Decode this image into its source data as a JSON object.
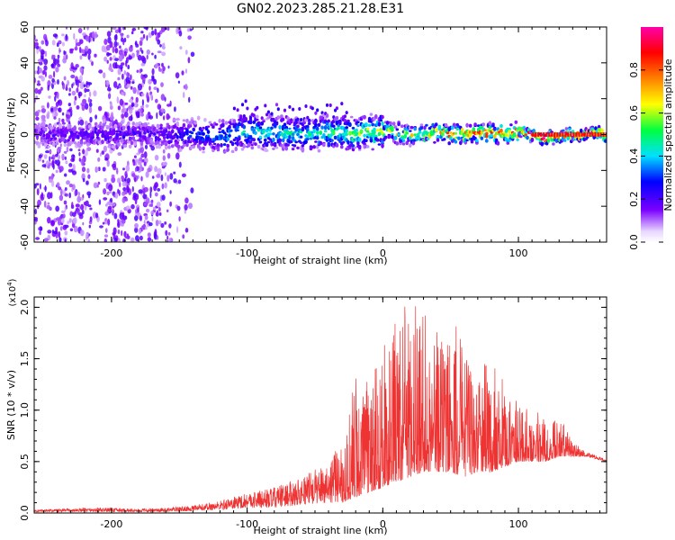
{
  "title": "GN02.2023.285.21.28.E31",
  "chart_data": [
    {
      "type": "heatmap",
      "xlabel": "Height of straight line (km)",
      "ylabel": "Frequency (Hz)",
      "xlim": [
        -257,
        165
      ],
      "ylim": [
        -60,
        60
      ],
      "xticks": [
        -200,
        -100,
        0,
        100
      ],
      "xtick_labels": [
        "-200",
        "-100",
        "0",
        "100"
      ],
      "yticks": [
        -60,
        -40,
        -20,
        0,
        20,
        40,
        60
      ],
      "ytick_labels": [
        "-60",
        "-40",
        "-20",
        "0",
        "20",
        "40",
        "60"
      ],
      "colorbar": {
        "label": "Normalized spectral amplitude",
        "range": [
          0,
          1
        ],
        "ticks": [
          0.0,
          0.2,
          0.4,
          0.6,
          0.8
        ],
        "tick_labels": [
          "0.0",
          "0.2",
          "0.4",
          "0.6",
          "0.8"
        ],
        "colormap": [
          "#ffffff",
          "#7a00ff",
          "#0000ff",
          "#00e0ff",
          "#00ff40",
          "#ffff00",
          "#ff8000",
          "#ff0000",
          "#ff00aa"
        ]
      },
      "ridge": {
        "x": [
          -257,
          -200,
          -160,
          -120,
          -100,
          -80,
          -60,
          -40,
          -20,
          0,
          20,
          40,
          60,
          80,
          100,
          120,
          140,
          165
        ],
        "frequency": [
          0,
          0,
          0,
          -1,
          2,
          1,
          0,
          1,
          0,
          2,
          0,
          1,
          0,
          1,
          1,
          -2,
          0,
          0
        ],
        "peak_amplitude": [
          0.15,
          0.2,
          0.2,
          0.35,
          0.45,
          0.45,
          0.45,
          0.5,
          0.55,
          0.65,
          0.65,
          0.75,
          0.8,
          0.85,
          0.9,
          0.9,
          0.95,
          0.95
        ]
      }
    },
    {
      "type": "line",
      "xlabel": "Height of straight line (km)",
      "ylabel": "SNR (10 * v/v)",
      "y_multiplier": "(x10",
      "y_multiplier_exp": "4",
      "y_multiplier_close": ")",
      "xlim": [
        -257,
        165
      ],
      "ylim": [
        0,
        2.1
      ],
      "xticks": [
        -200,
        -100,
        0,
        100
      ],
      "xtick_labels": [
        "-200",
        "-100",
        "0",
        "100"
      ],
      "yticks": [
        0.0,
        0.5,
        1.0,
        1.5,
        2.0
      ],
      "ytick_labels": [
        "0.0",
        "0.5",
        "1.0",
        "1.5",
        "2.0"
      ],
      "color": "#ee3333",
      "series": [
        {
          "x": [
            -257,
            -240,
            -220,
            -200,
            -180,
            -160,
            -140,
            -120,
            -100,
            -80,
            -60,
            -40,
            -30,
            -20,
            -10,
            0,
            10,
            20,
            30,
            40,
            50,
            60,
            70,
            80,
            90,
            100,
            110,
            120,
            130,
            140,
            150,
            165
          ],
          "envelope_low": [
            0.01,
            0.01,
            0.01,
            0.01,
            0.01,
            0.01,
            0.02,
            0.03,
            0.05,
            0.05,
            0.08,
            0.1,
            0.1,
            0.15,
            0.2,
            0.25,
            0.3,
            0.35,
            0.4,
            0.4,
            0.4,
            0.35,
            0.4,
            0.4,
            0.45,
            0.5,
            0.5,
            0.5,
            0.55,
            0.55,
            0.55,
            0.5
          ],
          "envelope_high": [
            0.03,
            0.04,
            0.05,
            0.05,
            0.04,
            0.05,
            0.07,
            0.12,
            0.2,
            0.25,
            0.35,
            0.5,
            0.7,
            1.4,
            1.25,
            1.6,
            1.9,
            2.1,
            2.05,
            1.85,
            1.9,
            1.7,
            1.45,
            1.45,
            1.3,
            1.05,
            1.05,
            0.9,
            0.95,
            0.72,
            0.6,
            0.52
          ]
        }
      ]
    }
  ]
}
